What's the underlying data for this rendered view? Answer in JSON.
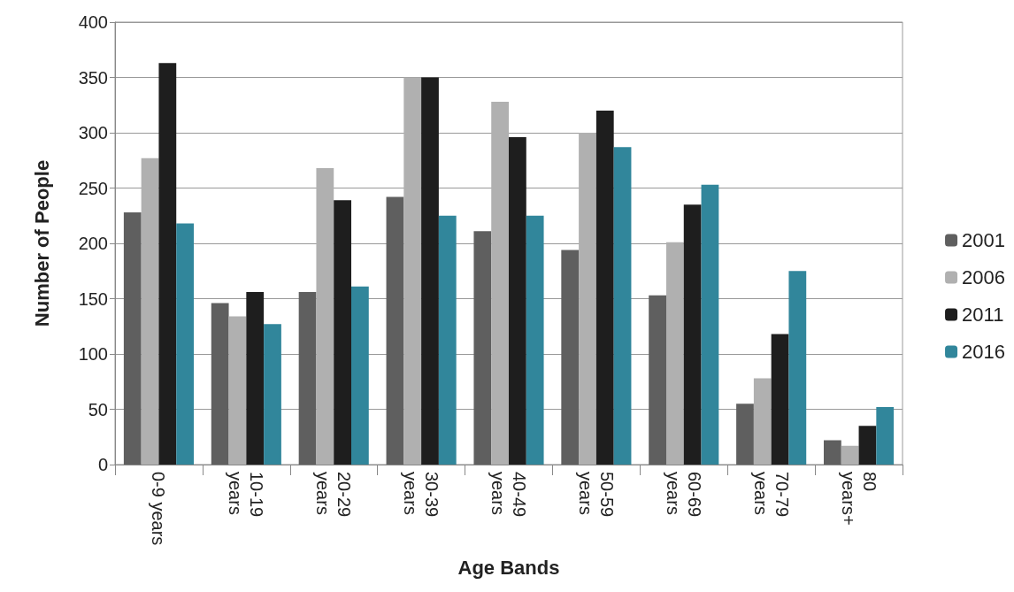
{
  "chart_data": {
    "type": "bar",
    "xlabel": "Age Bands",
    "ylabel": "Number of People",
    "categories": [
      "0-9 years",
      "10-19 years",
      "20-29 years",
      "30-39 years",
      "40-49 years",
      "50-59 years",
      "60-69 years",
      "70-79 years",
      "80 years+"
    ],
    "series": [
      {
        "name": "2001",
        "color": "#5f5f5f",
        "values": [
          228,
          146,
          156,
          242,
          211,
          194,
          153,
          55,
          22
        ]
      },
      {
        "name": "2006",
        "color": "#b0b0b0",
        "values": [
          277,
          134,
          268,
          350,
          328,
          300,
          201,
          78,
          17
        ]
      },
      {
        "name": "2011",
        "color": "#1e1e1e",
        "values": [
          363,
          156,
          239,
          350,
          296,
          320,
          235,
          118,
          35
        ]
      },
      {
        "name": "2016",
        "color": "#31869b",
        "values": [
          218,
          127,
          161,
          225,
          225,
          287,
          253,
          175,
          52
        ]
      }
    ],
    "ylim": [
      0,
      400
    ],
    "yticks": [
      0,
      50,
      100,
      150,
      200,
      250,
      300,
      350,
      400
    ],
    "grid": "y",
    "legend": "right"
  }
}
